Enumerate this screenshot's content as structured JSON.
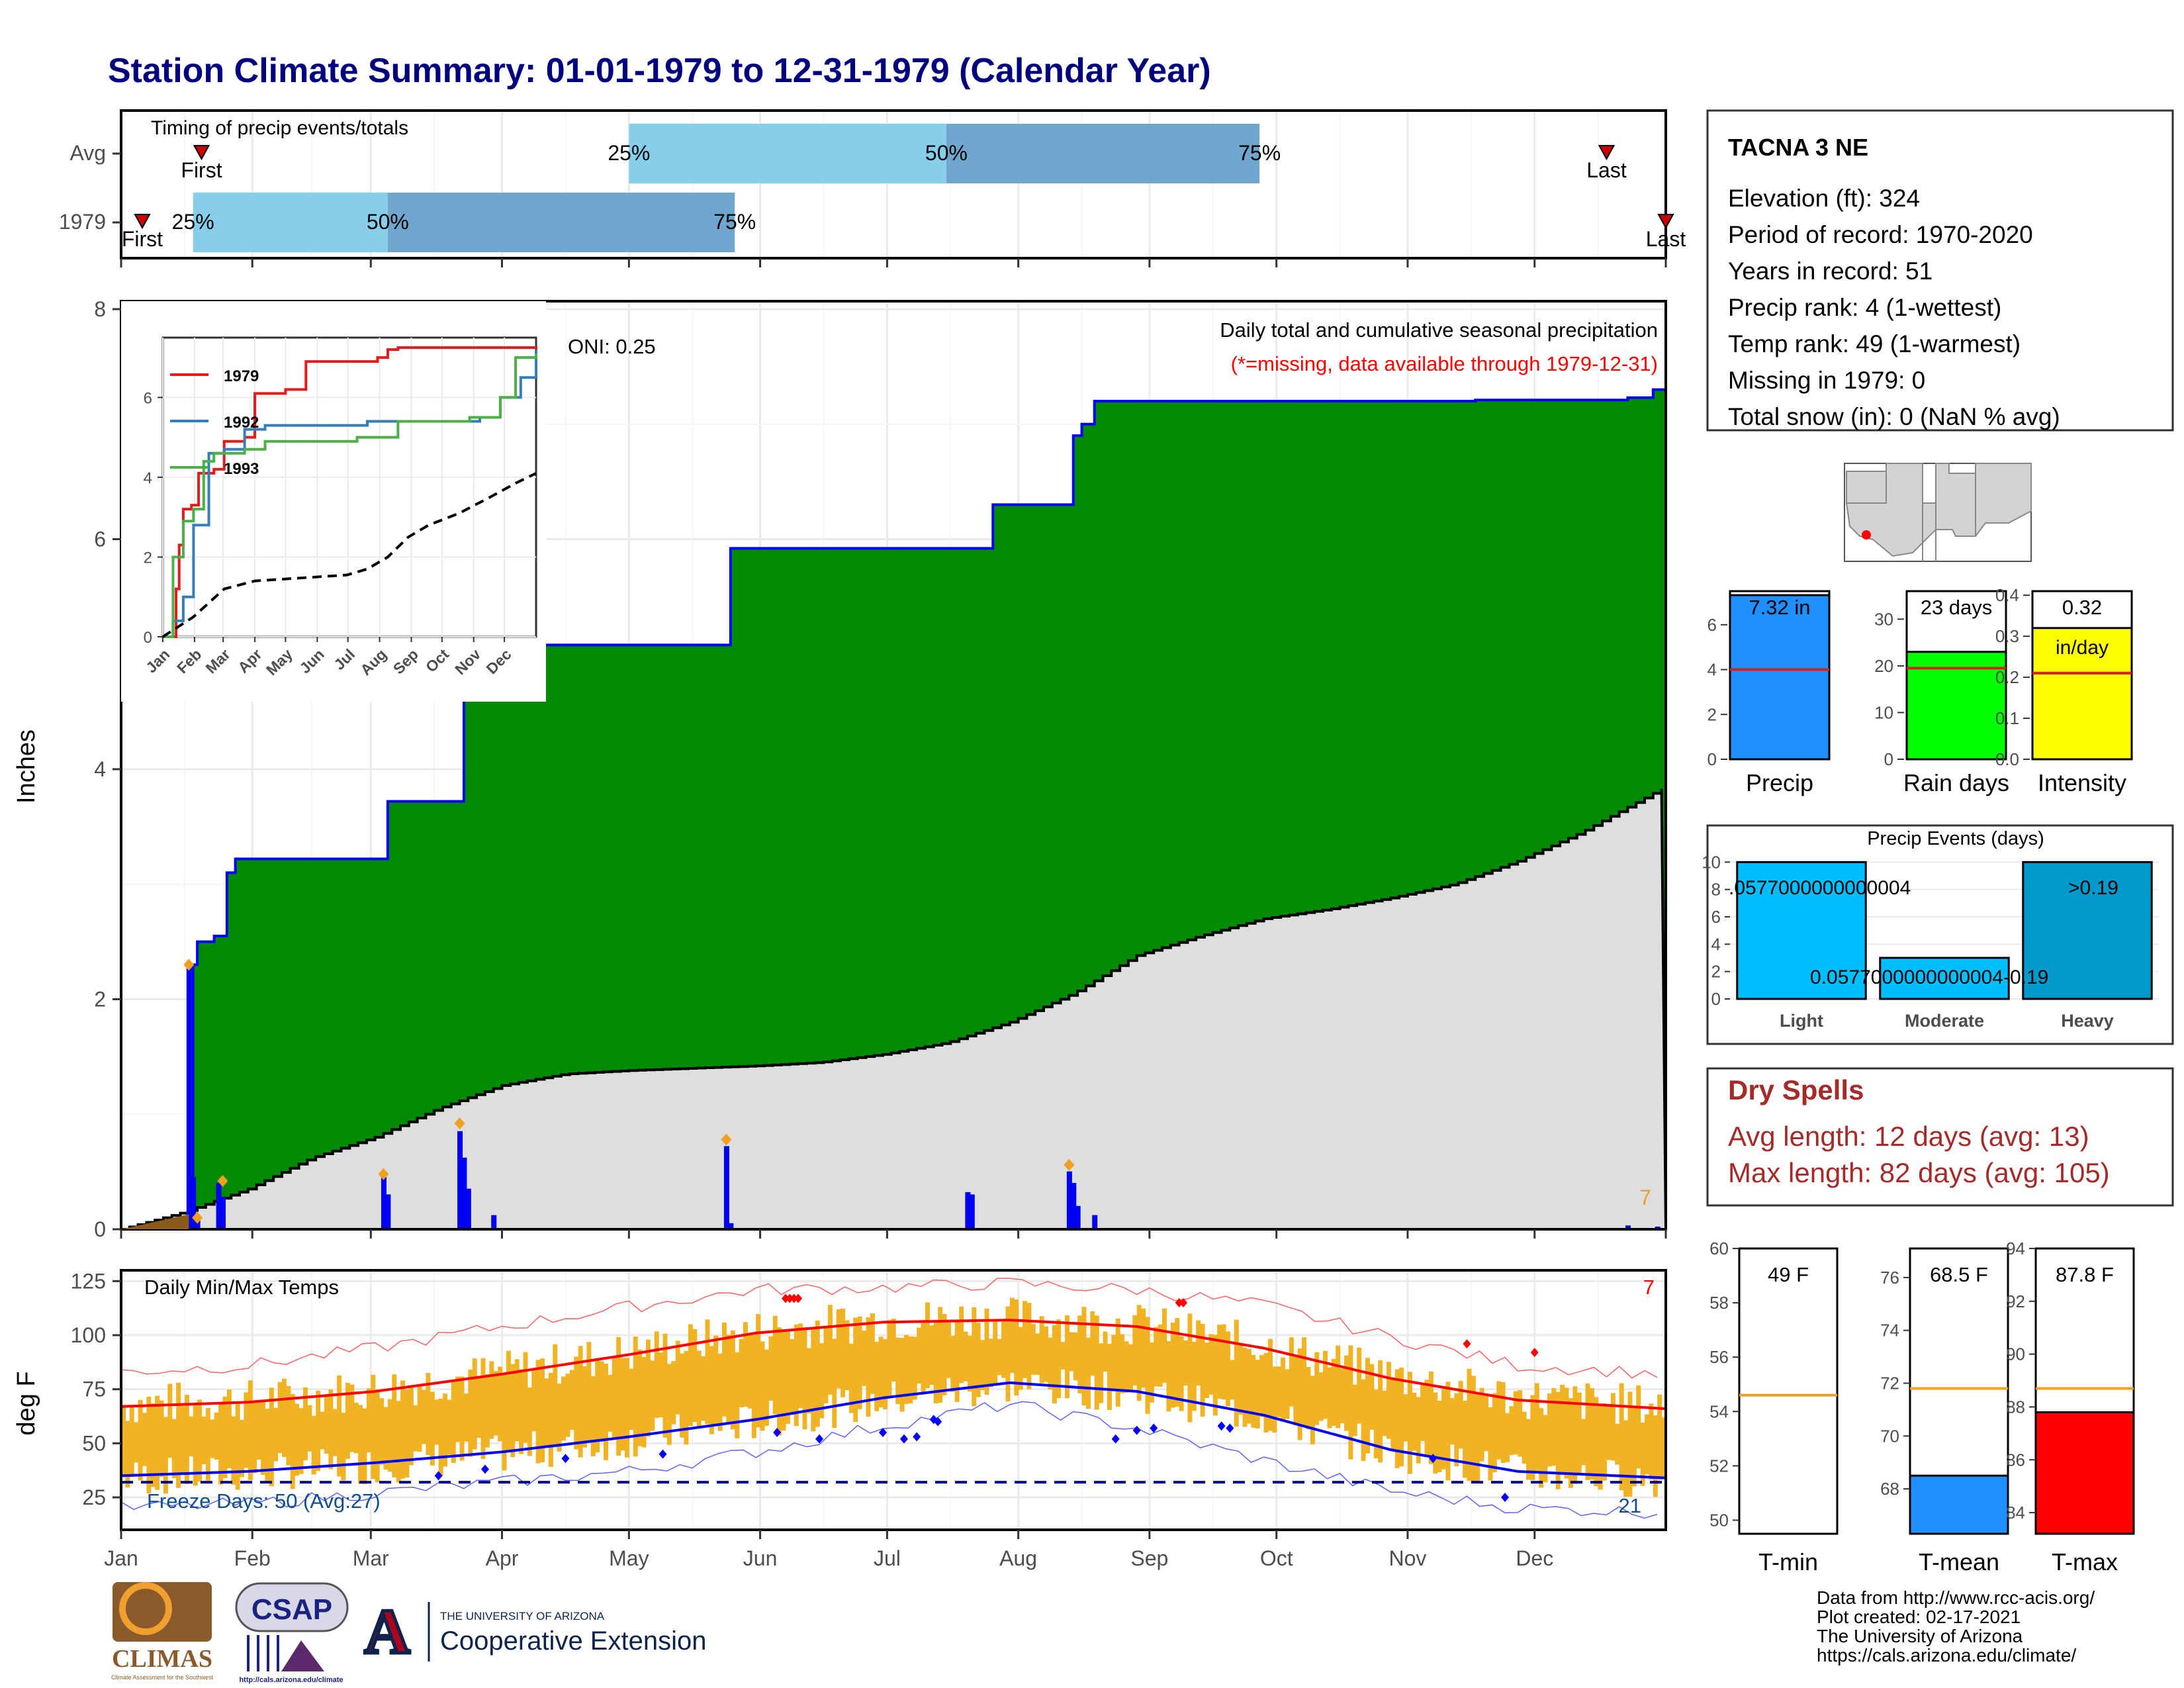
{
  "title": "Station Climate Summary: 01-01-1979 to 12-31-1979 (Calendar Year)",
  "months": [
    "Jan",
    "Feb",
    "Mar",
    "Apr",
    "May",
    "Jun",
    "Jul",
    "Aug",
    "Sep",
    "Oct",
    "Nov",
    "Dec"
  ],
  "colors": {
    "title": "#00007f",
    "green": "#008b00",
    "blue_line": "#0000ff",
    "grey": "#dedede",
    "light_blue": "#87ceeb",
    "mid_blue": "#6ea6cd",
    "orange": "#f0b323",
    "red": "#ff0000",
    "dark_red": "#a52a2a",
    "navy": "#00008b"
  },
  "timing": {
    "title": "Timing of precip events/totals",
    "rows": [
      {
        "label": "Avg",
        "first_day": 19,
        "p25_day": 120,
        "p50_day": 195,
        "p75_day": 269,
        "last_day": 351,
        "labels": {
          "first": "First",
          "p25": "25%",
          "p50": "50%",
          "p75": "75%",
          "last": "Last"
        }
      },
      {
        "label": "1979",
        "first_day": 5,
        "p25_day": 17,
        "p50_day": 63,
        "p75_day": 145,
        "last_day": 365,
        "labels": {
          "first": "First",
          "p25": "25%",
          "p50": "50%",
          "p75": "75%",
          "last": "Last"
        }
      }
    ]
  },
  "chart_data": [
    {
      "type": "area",
      "title": "Daily total and cumulative seasonal precipitation",
      "subtitle": "(*=missing, data available through 1979-12-31)",
      "ylabel": "Inches",
      "ylim": [
        0,
        8
      ],
      "yticks": [
        0,
        2,
        4,
        6,
        8
      ],
      "oni": "ONI: 0.25",
      "corner_count": "7",
      "cumulative_1979": [
        [
          0,
          0
        ],
        [
          16,
          0.02
        ],
        [
          17,
          2.3
        ],
        [
          18,
          2.5
        ],
        [
          22,
          2.55
        ],
        [
          25,
          3.1
        ],
        [
          27,
          3.22
        ],
        [
          62,
          3.22
        ],
        [
          63,
          3.72
        ],
        [
          80,
          3.72
        ],
        [
          81,
          5.08
        ],
        [
          143,
          5.08
        ],
        [
          144,
          5.92
        ],
        [
          205,
          5.92
        ],
        [
          206,
          6.3
        ],
        [
          224,
          6.3
        ],
        [
          225,
          6.9
        ],
        [
          227,
          7.0
        ],
        [
          230,
          7.2
        ],
        [
          318,
          7.2
        ],
        [
          320,
          7.21
        ],
        [
          356,
          7.23
        ],
        [
          362,
          7.3
        ],
        [
          365,
          7.28
        ]
      ],
      "cumulative_avg": [
        [
          0,
          0
        ],
        [
          15,
          0.15
        ],
        [
          30,
          0.35
        ],
        [
          45,
          0.62
        ],
        [
          60,
          0.8
        ],
        [
          75,
          1.05
        ],
        [
          90,
          1.25
        ],
        [
          105,
          1.35
        ],
        [
          120,
          1.38
        ],
        [
          135,
          1.4
        ],
        [
          150,
          1.42
        ],
        [
          165,
          1.45
        ],
        [
          180,
          1.52
        ],
        [
          195,
          1.62
        ],
        [
          210,
          1.8
        ],
        [
          225,
          2.05
        ],
        [
          240,
          2.38
        ],
        [
          255,
          2.55
        ],
        [
          270,
          2.7
        ],
        [
          285,
          2.78
        ],
        [
          300,
          2.88
        ],
        [
          315,
          3.0
        ],
        [
          330,
          3.2
        ],
        [
          345,
          3.45
        ],
        [
          365,
          3.85
        ]
      ],
      "daily_bars": [
        [
          16,
          2.3
        ],
        [
          17,
          0.45
        ],
        [
          18,
          0.08
        ],
        [
          23,
          0.4
        ],
        [
          24,
          0.28
        ],
        [
          62,
          0.45
        ],
        [
          63,
          0.3
        ],
        [
          80,
          0.85
        ],
        [
          81,
          0.62
        ],
        [
          82,
          0.35
        ],
        [
          88,
          0.12
        ],
        [
          143,
          0.72
        ],
        [
          144,
          0.05
        ],
        [
          200,
          0.32
        ],
        [
          201,
          0.3
        ],
        [
          224,
          0.5
        ],
        [
          225,
          0.4
        ],
        [
          226,
          0.2
        ],
        [
          230,
          0.12
        ],
        [
          356,
          0.03
        ],
        [
          363,
          0.02
        ]
      ],
      "event_markers": [
        [
          16,
          2.3
        ],
        [
          18,
          0.1
        ],
        [
          24,
          0.42
        ],
        [
          62,
          0.48
        ],
        [
          80,
          0.92
        ],
        [
          143,
          0.78
        ],
        [
          224,
          0.56
        ]
      ]
    },
    {
      "type": "line",
      "title": "",
      "xlim": [
        "Jan",
        "Dec"
      ],
      "ylim": [
        0,
        7.5
      ],
      "yticks": [
        0,
        2,
        4,
        6
      ],
      "xticks": [
        "Jan",
        "Feb",
        "Mar",
        "Apr",
        "May",
        "Jun",
        "Jul",
        "Aug",
        "Sep",
        "Oct",
        "Nov",
        "Dec"
      ],
      "series": [
        {
          "name": "1979",
          "color": "#e41a1c",
          "points": [
            [
              0,
              0
            ],
            [
              12,
              0
            ],
            [
              13,
              1.2
            ],
            [
              16,
              2.3
            ],
            [
              20,
              3.2
            ],
            [
              28,
              3.3
            ],
            [
              35,
              4.1
            ],
            [
              50,
              4.2
            ],
            [
              60,
              4.9
            ],
            [
              80,
              5.0
            ],
            [
              90,
              6.1
            ],
            [
              120,
              6.2
            ],
            [
              140,
              6.9
            ],
            [
              210,
              7.0
            ],
            [
              220,
              7.2
            ],
            [
              230,
              7.25
            ],
            [
              365,
              7.28
            ]
          ]
        },
        {
          "name": "1992",
          "color": "#377eb8",
          "points": [
            [
              0,
              0
            ],
            [
              10,
              0.4
            ],
            [
              20,
              1.0
            ],
            [
              30,
              2.8
            ],
            [
              45,
              4.6
            ],
            [
              60,
              4.7
            ],
            [
              80,
              5.2
            ],
            [
              100,
              5.3
            ],
            [
              140,
              5.3
            ],
            [
              170,
              5.3
            ],
            [
              200,
              5.4
            ],
            [
              240,
              5.4
            ],
            [
              310,
              5.5
            ],
            [
              330,
              6.0
            ],
            [
              340,
              6.0
            ],
            [
              350,
              6.5
            ],
            [
              365,
              7.2
            ]
          ]
        },
        {
          "name": "1993",
          "color": "#4daf4a",
          "points": [
            [
              0,
              0
            ],
            [
              10,
              2.0
            ],
            [
              20,
              2.9
            ],
            [
              30,
              3.2
            ],
            [
              40,
              4.4
            ],
            [
              50,
              4.6
            ],
            [
              80,
              4.7
            ],
            [
              100,
              4.9
            ],
            [
              130,
              4.9
            ],
            [
              160,
              4.9
            ],
            [
              190,
              5.0
            ],
            [
              230,
              5.4
            ],
            [
              300,
              5.5
            ],
            [
              330,
              6.0
            ],
            [
              340,
              6.0
            ],
            [
              345,
              7.0
            ],
            [
              365,
              7.1
            ]
          ]
        },
        {
          "name": "average",
          "color": "#000000",
          "points": [
            [
              0,
              0
            ],
            [
              30,
              0.5
            ],
            [
              60,
              1.2
            ],
            [
              90,
              1.4
            ],
            [
              120,
              1.45
            ],
            [
              150,
              1.5
            ],
            [
              180,
              1.55
            ],
            [
              200,
              1.7
            ],
            [
              220,
              2.0
            ],
            [
              240,
              2.5
            ],
            [
              260,
              2.8
            ],
            [
              290,
              3.1
            ],
            [
              320,
              3.5
            ],
            [
              345,
              3.85
            ],
            [
              365,
              4.1
            ]
          ]
        }
      ]
    },
    {
      "type": "line",
      "title": "Daily Min/Max Temps",
      "ylabel": "deg F",
      "ylim": [
        10,
        130
      ],
      "yticks": [
        25,
        50,
        75,
        100,
        125
      ],
      "xticks": [
        "Jan",
        "Feb",
        "Mar",
        "Apr",
        "May",
        "Jun",
        "Jul",
        "Aug",
        "Sep",
        "Oct",
        "Nov",
        "Dec"
      ],
      "freeze_line": 32,
      "freeze_text": "Freeze Days: 50 (Avg:27)",
      "freeze_count_right": "21",
      "red_count": "7",
      "normal_max": [
        [
          0,
          67
        ],
        [
          30,
          69
        ],
        [
          60,
          74
        ],
        [
          90,
          82
        ],
        [
          120,
          91
        ],
        [
          150,
          101
        ],
        [
          180,
          106
        ],
        [
          210,
          107
        ],
        [
          240,
          104
        ],
        [
          270,
          94
        ],
        [
          300,
          80
        ],
        [
          330,
          70
        ],
        [
          365,
          66
        ]
      ],
      "normal_min": [
        [
          0,
          35
        ],
        [
          30,
          37
        ],
        [
          60,
          41
        ],
        [
          90,
          46
        ],
        [
          120,
          53
        ],
        [
          150,
          61
        ],
        [
          180,
          71
        ],
        [
          210,
          78
        ],
        [
          240,
          74
        ],
        [
          270,
          63
        ],
        [
          300,
          47
        ],
        [
          330,
          37
        ],
        [
          365,
          34
        ]
      ],
      "record_high": [
        [
          0,
          83
        ],
        [
          30,
          86
        ],
        [
          60,
          94
        ],
        [
          90,
          104
        ],
        [
          120,
          113
        ],
        [
          150,
          121
        ],
        [
          180,
          122
        ],
        [
          210,
          124
        ],
        [
          240,
          121
        ],
        [
          270,
          114
        ],
        [
          300,
          99
        ],
        [
          330,
          86
        ],
        [
          365,
          82
        ]
      ],
      "record_low": [
        [
          0,
          20
        ],
        [
          30,
          22
        ],
        [
          60,
          27
        ],
        [
          90,
          32
        ],
        [
          120,
          37
        ],
        [
          150,
          46
        ],
        [
          180,
          58
        ],
        [
          210,
          68
        ],
        [
          240,
          57
        ],
        [
          270,
          42
        ],
        [
          300,
          28
        ],
        [
          330,
          20
        ],
        [
          365,
          18
        ]
      ],
      "record_high_markers": [
        [
          157,
          117
        ],
        [
          158,
          117
        ],
        [
          159,
          117
        ],
        [
          160,
          117
        ],
        [
          250,
          115
        ],
        [
          251,
          115
        ],
        [
          318,
          96
        ],
        [
          334,
          92
        ]
      ],
      "record_low_markers": [
        [
          75,
          35
        ],
        [
          86,
          38
        ],
        [
          105,
          43
        ],
        [
          128,
          45
        ],
        [
          155,
          55
        ],
        [
          165,
          52
        ],
        [
          180,
          55
        ],
        [
          185,
          52
        ],
        [
          188,
          53
        ],
        [
          192,
          61
        ],
        [
          193,
          60
        ],
        [
          235,
          52
        ],
        [
          240,
          56
        ],
        [
          244,
          57
        ],
        [
          260,
          58
        ],
        [
          262,
          57
        ],
        [
          310,
          43
        ],
        [
          327,
          25
        ]
      ]
    },
    {
      "type": "bar",
      "title": "",
      "categories": [
        "Precip",
        "Rain days",
        "Intensity"
      ],
      "values": [
        7.32,
        23,
        0.32
      ],
      "labels": [
        "7.32 in",
        "23 days",
        "0.32"
      ],
      "sub_labels": [
        "",
        "",
        "in/day"
      ],
      "averages": [
        4.0,
        19.5,
        0.21
      ],
      "ylims": [
        [
          0,
          7.5
        ],
        [
          0,
          36
        ],
        [
          0,
          0.41
        ]
      ],
      "yticks": [
        [
          0,
          2,
          4,
          6
        ],
        [
          0,
          10,
          20,
          30
        ],
        [
          0.0,
          0.1,
          0.2,
          0.3,
          0.4
        ]
      ],
      "ytick_labels": [
        [
          "0",
          "2",
          "4",
          "6"
        ],
        [
          "0",
          "10",
          "20",
          "30"
        ],
        [
          "0.0",
          "0.1",
          "0.2",
          "0.3",
          "0.4"
        ]
      ],
      "colors": [
        "#1e90ff",
        "#00ff00",
        "#ffff00"
      ]
    },
    {
      "type": "bar",
      "title": "Precip Events (days)",
      "categories": [
        "Light",
        "Moderate",
        "Heavy"
      ],
      "values": [
        10,
        3,
        10
      ],
      "ylim": [
        0,
        10.5
      ],
      "yticks": [
        0,
        2,
        4,
        6,
        8,
        10
      ],
      "labels": [
        ".0577000000000004",
        "0.0577000000000004-0.19",
        ">0.19"
      ],
      "colors": [
        "#00bfff",
        "#00bfff",
        "#009acd"
      ]
    },
    {
      "type": "bar",
      "title": "",
      "categories": [
        "T-min",
        "T-mean",
        "T-max"
      ],
      "values": [
        49,
        68.5,
        87.8
      ],
      "labels": [
        "49 F",
        "68.5 F",
        "87.8 F"
      ],
      "averages": [
        54.6,
        71.8,
        88.7
      ],
      "ylims": [
        [
          49.5,
          60
        ],
        [
          66.3,
          77.1
        ],
        [
          83.2,
          94
        ]
      ],
      "yticks": [
        [
          50,
          52,
          54,
          56,
          58,
          60
        ],
        [
          68,
          70,
          72,
          74,
          76
        ],
        [
          84,
          86,
          88,
          90,
          92,
          94
        ]
      ],
      "colors": [
        "#ffffff",
        "#1e90ff",
        "#ff0000"
      ]
    }
  ],
  "station": {
    "name": "TACNA 3 NE",
    "lines": [
      "Elevation (ft): 324",
      "Period of record: 1970-2020",
      "Years in record: 51",
      "Precip rank: 4 (1-wettest)",
      "Temp rank: 49 (1-warmest)",
      "Missing in 1979: 0",
      "Total snow (in): 0 (NaN % avg)"
    ]
  },
  "dry_spells": {
    "title": "Dry Spells",
    "avg": "Avg length: 12 days (avg: 13)",
    "max": "Max length: 82 days (avg: 105)"
  },
  "footer": {
    "lines": [
      "Data from http://www.rcc-acis.org/",
      "Plot created: 02-17-2021",
      "The University of Arizona",
      "https://cals.arizona.edu/climate/"
    ],
    "logos": {
      "climas": "CLIMAS",
      "climas_small": "Climate Assessment for the Southwest",
      "csap": "CSAP",
      "csap_url": "http://cals.arizona.edu/climate",
      "ua_mark": "A",
      "ua_top": "THE UNIVERSITY OF ARIZONA",
      "ua_bottom": "Cooperative Extension"
    }
  }
}
